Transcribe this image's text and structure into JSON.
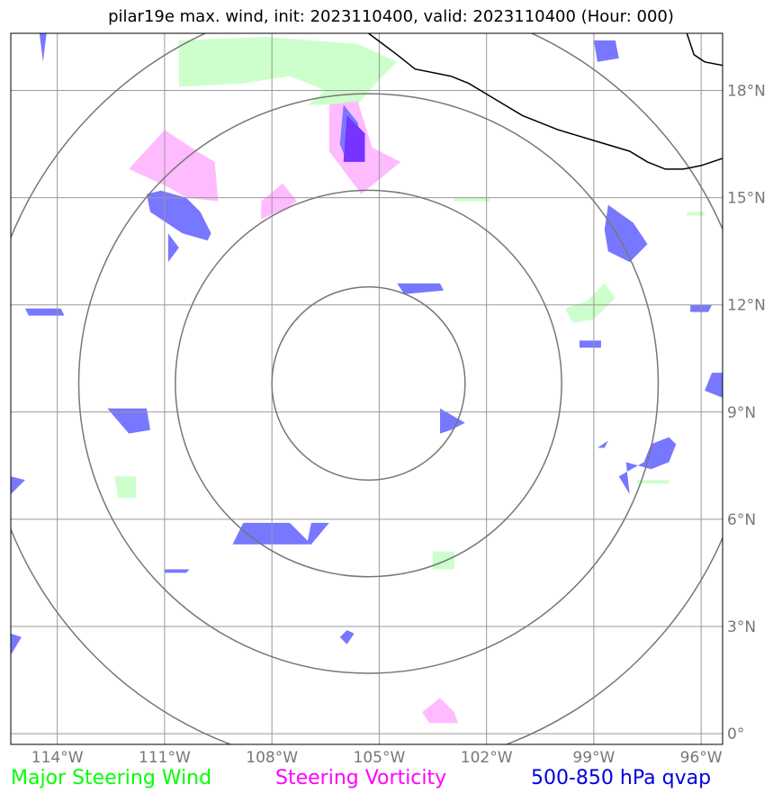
{
  "title": "pilar19e max. wind, init: 2023110400, valid: 2023110400 (Hour: 000)",
  "map": {
    "lon_range": [
      -115.3,
      -95.4
    ],
    "lat_range": [
      -0.3,
      19.6
    ],
    "longitude_ticks": [
      {
        "lon": -114,
        "label": "114°W"
      },
      {
        "lon": -111,
        "label": "111°W"
      },
      {
        "lon": -108,
        "label": "108°W"
      },
      {
        "lon": -105,
        "label": "105°W"
      },
      {
        "lon": -102,
        "label": "102°W"
      },
      {
        "lon": -99,
        "label": "99°W"
      },
      {
        "lon": -96,
        "label": "96°W"
      }
    ],
    "latitude_ticks": [
      {
        "lat": 0,
        "label": "0°"
      },
      {
        "lat": 3,
        "label": "3°N"
      },
      {
        "lat": 6,
        "label": "6°N"
      },
      {
        "lat": 9,
        "label": "9°N"
      },
      {
        "lat": 12,
        "label": "12°N"
      },
      {
        "lat": 15,
        "label": "15°N"
      },
      {
        "lat": 18,
        "label": "18°N"
      }
    ],
    "range_rings_center": {
      "lon": -105.3,
      "lat": 9.8
    },
    "range_ring_radii_deg": [
      2.7,
      5.4,
      8.1,
      10.8
    ],
    "colors": {
      "grid": "#999999",
      "rings": "#777777",
      "coast": "#000000",
      "steering_wind": "#ccffcc",
      "vorticity": "#ffbbff",
      "qvap": "#7777ff",
      "qvap_dark": "#7733ff"
    },
    "coastline": [
      [
        -105.3,
        19.6
      ],
      [
        -104.9,
        19.3
      ],
      [
        -104.5,
        19.0
      ],
      [
        -104.0,
        18.6
      ],
      [
        -103.0,
        18.4
      ],
      [
        -102.5,
        18.2
      ],
      [
        -102.0,
        17.9
      ],
      [
        -101.5,
        17.6
      ],
      [
        -101.0,
        17.3
      ],
      [
        -100.0,
        16.9
      ],
      [
        -99.0,
        16.6
      ],
      [
        -98.0,
        16.3
      ],
      [
        -97.5,
        16.0
      ],
      [
        -97.0,
        15.8
      ],
      [
        -96.5,
        15.8
      ],
      [
        -96.0,
        15.9
      ],
      [
        -95.7,
        16.0
      ],
      [
        -95.4,
        16.1
      ]
    ],
    "coastline_ne": [
      [
        -96.4,
        19.6
      ],
      [
        -96.2,
        19.0
      ],
      [
        -95.9,
        18.8
      ],
      [
        -95.4,
        18.7
      ]
    ],
    "steering_wind_areas": [
      [
        [
          -110.6,
          19.4
        ],
        [
          -108.2,
          19.5
        ],
        [
          -105.6,
          19.3
        ],
        [
          -104.5,
          18.8
        ],
        [
          -105.1,
          18.2
        ],
        [
          -105.6,
          17.6
        ],
        [
          -107.0,
          17.6
        ],
        [
          -106.5,
          18.0
        ],
        [
          -107.5,
          18.4
        ],
        [
          -108.8,
          18.2
        ],
        [
          -110.6,
          18.1
        ]
      ],
      [
        [
          -99.8,
          11.9
        ],
        [
          -99.2,
          12.1
        ],
        [
          -98.7,
          12.6
        ],
        [
          -98.4,
          12.2
        ],
        [
          -99.0,
          11.6
        ],
        [
          -99.6,
          11.5
        ]
      ],
      [
        [
          -102.9,
          15.0
        ],
        [
          -101.9,
          15.0
        ],
        [
          -101.9,
          14.9
        ],
        [
          -102.9,
          14.9
        ]
      ],
      [
        [
          -112.4,
          7.2
        ],
        [
          -111.8,
          7.2
        ],
        [
          -111.8,
          6.6
        ],
        [
          -112.3,
          6.6
        ]
      ],
      [
        [
          -103.5,
          5.1
        ],
        [
          -102.9,
          5.1
        ],
        [
          -102.9,
          4.6
        ],
        [
          -103.5,
          4.6
        ]
      ],
      [
        [
          -97.8,
          7.1
        ],
        [
          -96.9,
          7.1
        ],
        [
          -96.9,
          7.0
        ],
        [
          -97.8,
          7.0
        ]
      ],
      [
        [
          -96.4,
          14.6
        ],
        [
          -95.9,
          14.6
        ],
        [
          -95.9,
          14.5
        ],
        [
          -96.4,
          14.5
        ]
      ]
    ],
    "vorticity_areas": [
      [
        [
          -111.0,
          16.9
        ],
        [
          -110.1,
          16.3
        ],
        [
          -109.6,
          16.0
        ],
        [
          -109.5,
          14.9
        ],
        [
          -110.4,
          15.0
        ],
        [
          -110.9,
          15.3
        ],
        [
          -112.0,
          15.8
        ]
      ],
      [
        [
          -106.4,
          17.6
        ],
        [
          -105.6,
          17.7
        ],
        [
          -105.2,
          16.4
        ],
        [
          -104.4,
          16.0
        ],
        [
          -105.5,
          15.1
        ],
        [
          -106.4,
          16.3
        ],
        [
          -106.4,
          17.2
        ]
      ],
      [
        [
          -108.3,
          14.9
        ],
        [
          -107.7,
          15.4
        ],
        [
          -107.3,
          14.9
        ],
        [
          -107.6,
          14.7
        ],
        [
          -108.3,
          14.4
        ]
      ],
      [
        [
          -103.6,
          0.3
        ],
        [
          -102.8,
          0.3
        ],
        [
          -102.9,
          0.6
        ],
        [
          -103.3,
          1.0
        ],
        [
          -103.8,
          0.6
        ]
      ]
    ],
    "qvap_areas": [
      [
        [
          -111.4,
          14.6
        ],
        [
          -110.5,
          14.0
        ],
        [
          -109.8,
          13.8
        ],
        [
          -109.7,
          14.0
        ],
        [
          -110.0,
          14.6
        ],
        [
          -110.4,
          15.0
        ],
        [
          -111.1,
          15.2
        ],
        [
          -111.5,
          15.1
        ]
      ],
      [
        [
          -110.9,
          12.5
        ],
        [
          -110.9,
          13.2
        ],
        [
          -110.6,
          13.6
        ],
        [
          -110.9,
          14.0
        ]
      ],
      [
        [
          -106.0,
          17.6
        ],
        [
          -105.6,
          17.1
        ],
        [
          -105.4,
          16.1
        ],
        [
          -105.9,
          16.0
        ],
        [
          -106.1,
          16.5
        ]
      ],
      [
        [
          -98.6,
          14.8
        ],
        [
          -97.9,
          14.3
        ],
        [
          -97.5,
          13.7
        ],
        [
          -98.0,
          13.2
        ],
        [
          -98.6,
          13.5
        ],
        [
          -98.7,
          14.1
        ]
      ],
      [
        [
          -99.0,
          19.4
        ],
        [
          -98.4,
          19.4
        ],
        [
          -98.3,
          18.9
        ],
        [
          -98.9,
          18.8
        ]
      ],
      [
        [
          -104.5,
          12.6
        ],
        [
          -103.3,
          12.6
        ],
        [
          -103.2,
          12.4
        ],
        [
          -104.3,
          12.3
        ]
      ],
      [
        [
          -114.9,
          11.9
        ],
        [
          -113.9,
          11.9
        ],
        [
          -113.8,
          11.7
        ],
        [
          -114.8,
          11.7
        ]
      ],
      [
        [
          -112.6,
          9.1
        ],
        [
          -111.5,
          9.1
        ],
        [
          -111.4,
          8.5
        ],
        [
          -112.0,
          8.4
        ]
      ],
      [
        [
          -103.3,
          9.1
        ],
        [
          -102.6,
          8.7
        ],
        [
          -103.0,
          8.5
        ],
        [
          -103.3,
          8.4
        ]
      ],
      [
        [
          -98.1,
          7.6
        ],
        [
          -97.4,
          7.4
        ],
        [
          -96.9,
          7.6
        ],
        [
          -96.7,
          8.1
        ],
        [
          -96.9,
          8.3
        ],
        [
          -97.4,
          8.1
        ],
        [
          -97.6,
          7.6
        ],
        [
          -98.3,
          7.2
        ],
        [
          -98.0,
          6.7
        ]
      ],
      [
        [
          -98.9,
          8.0
        ],
        [
          -98.6,
          8.2
        ],
        [
          -98.7,
          8.0
        ]
      ],
      [
        [
          -95.7,
          10.1
        ],
        [
          -95.4,
          10.1
        ],
        [
          -95.4,
          9.4
        ],
        [
          -95.9,
          9.6
        ]
      ],
      [
        [
          -96.3,
          12.0
        ],
        [
          -95.7,
          12.0
        ],
        [
          -95.8,
          11.8
        ],
        [
          -96.3,
          11.8
        ]
      ],
      [
        [
          -99.4,
          11.0
        ],
        [
          -98.8,
          11.0
        ],
        [
          -98.8,
          10.8
        ],
        [
          -99.4,
          10.8
        ]
      ],
      [
        [
          -108.8,
          5.9
        ],
        [
          -107.5,
          5.9
        ],
        [
          -107.0,
          5.4
        ],
        [
          -106.9,
          5.9
        ],
        [
          -106.4,
          5.9
        ],
        [
          -106.9,
          5.3
        ],
        [
          -107.9,
          5.3
        ],
        [
          -109.1,
          5.3
        ]
      ],
      [
        [
          -111.0,
          4.6
        ],
        [
          -110.3,
          4.6
        ],
        [
          -110.4,
          4.5
        ],
        [
          -111.0,
          4.5
        ]
      ],
      [
        [
          -105.9,
          2.9
        ],
        [
          -105.7,
          2.8
        ],
        [
          -105.9,
          2.5
        ],
        [
          -106.1,
          2.7
        ]
      ],
      [
        [
          -115.3,
          7.2
        ],
        [
          -114.9,
          7.1
        ],
        [
          -115.3,
          6.7
        ]
      ],
      [
        [
          -115.3,
          2.8
        ],
        [
          -115.0,
          2.7
        ],
        [
          -115.3,
          2.2
        ]
      ],
      [
        [
          -114.5,
          19.6
        ],
        [
          -114.3,
          19.6
        ],
        [
          -114.4,
          18.8
        ]
      ]
    ],
    "qvap_dark_areas": [
      [
        [
          -105.9,
          17.3
        ],
        [
          -105.4,
          16.8
        ],
        [
          -105.4,
          16.0
        ],
        [
          -106.0,
          16.0
        ]
      ]
    ]
  },
  "legend": {
    "steering_wind": "Major Steering Wind",
    "vorticity": "Steering Vorticity",
    "qvap": "500-850 hPa qvap"
  },
  "legend_colors": {
    "steering_wind": "#00ff00",
    "vorticity": "#ff00ff",
    "qvap": "#0000dd"
  }
}
